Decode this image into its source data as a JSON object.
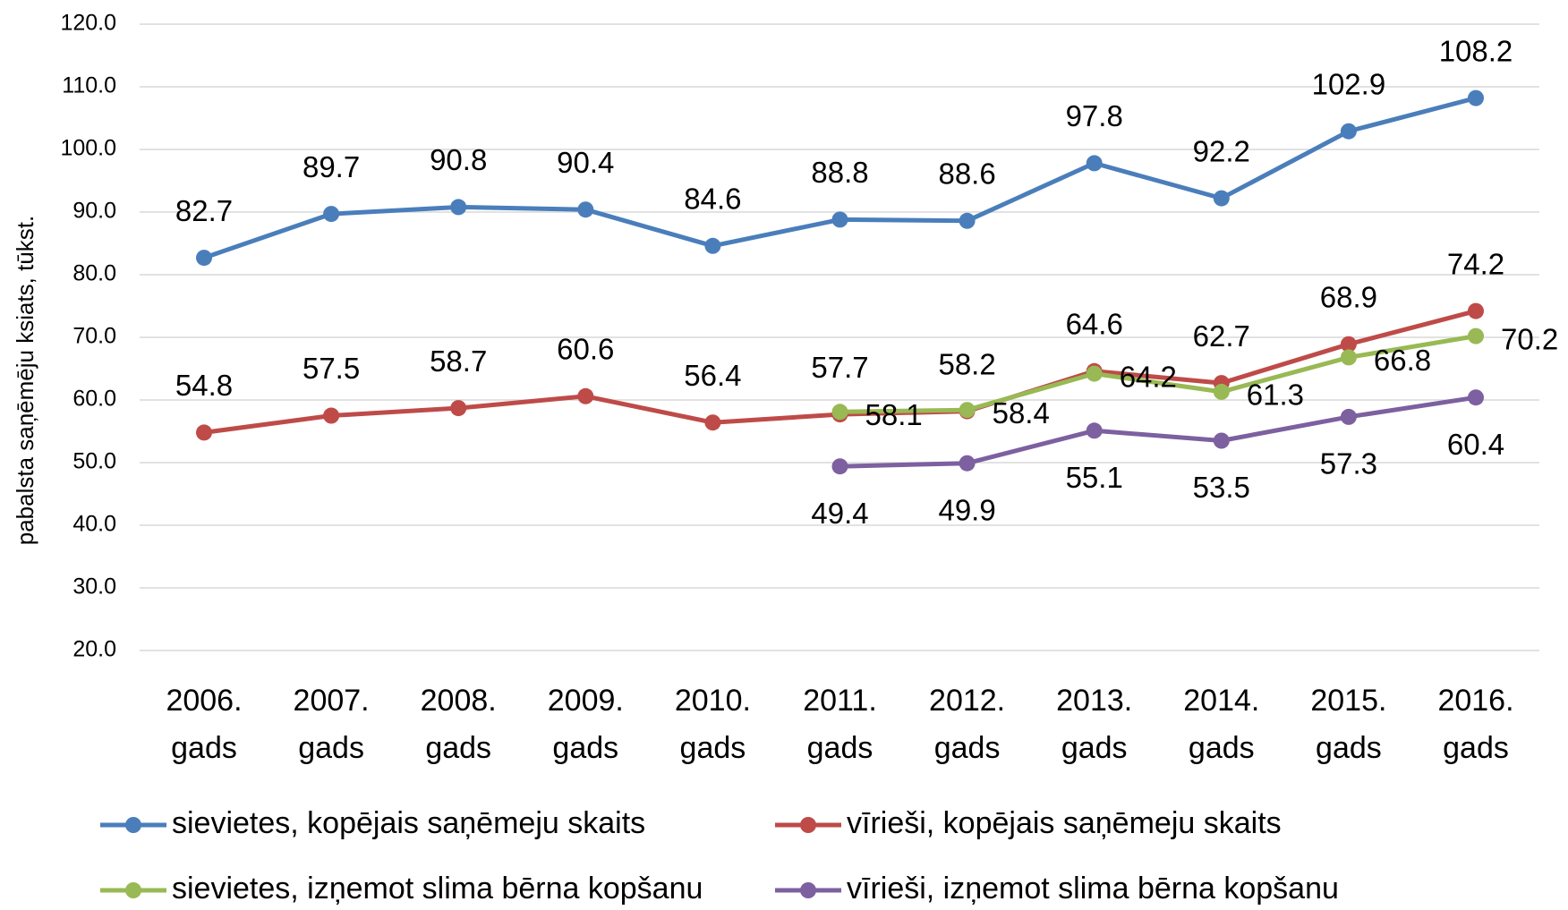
{
  "chart_data": {
    "type": "line",
    "y_label": "pabalsta saņēmēju ksiats, tūkst.",
    "categories": [
      "2006. gads",
      "2007. gads",
      "2008. gads",
      "2009. gads",
      "2010. gads",
      "2011. gads",
      "2012. gads",
      "2013. gads",
      "2014. gads",
      "2015. gads",
      "2016. gads"
    ],
    "series": [
      {
        "name": "sievietes, kopējais saņēmeju skaits",
        "color": "#4a7ebb",
        "values": [
          82.7,
          89.7,
          90.8,
          90.4,
          84.6,
          88.8,
          88.6,
          97.8,
          92.2,
          102.9,
          108.2
        ]
      },
      {
        "name": "vīrieši, kopējais saņēmeju skaits",
        "color": "#be4b48",
        "values": [
          54.8,
          57.5,
          58.7,
          60.6,
          56.4,
          57.7,
          58.2,
          64.6,
          62.7,
          68.9,
          74.2
        ]
      },
      {
        "name": "sievietes, izņemot slima bērna kopšanu",
        "color": "#98b954",
        "values": [
          null,
          null,
          null,
          null,
          null,
          58.1,
          58.4,
          64.2,
          61.3,
          66.8,
          70.2
        ]
      },
      {
        "name": "vīrieši, izņemot slima bērna kopšanu",
        "color": "#7d60a0",
        "values": [
          null,
          null,
          null,
          null,
          null,
          49.4,
          49.9,
          55.1,
          53.5,
          57.3,
          60.4
        ]
      }
    ],
    "ylim": [
      20,
      120
    ],
    "yticks": [
      {
        "value": 20,
        "label": "20.0"
      },
      {
        "value": 30,
        "label": "30.0"
      },
      {
        "value": 40,
        "label": "40.0"
      },
      {
        "value": 50,
        "label": "50.0"
      },
      {
        "value": 60,
        "label": "60.0"
      },
      {
        "value": 70,
        "label": "70.0"
      },
      {
        "value": 80,
        "label": "80.0"
      },
      {
        "value": 90,
        "label": "90.0"
      },
      {
        "value": 100,
        "label": "100.0"
      },
      {
        "value": 110,
        "label": "110.0"
      },
      {
        "value": 120,
        "label": "120.0"
      }
    ],
    "grid": true
  }
}
